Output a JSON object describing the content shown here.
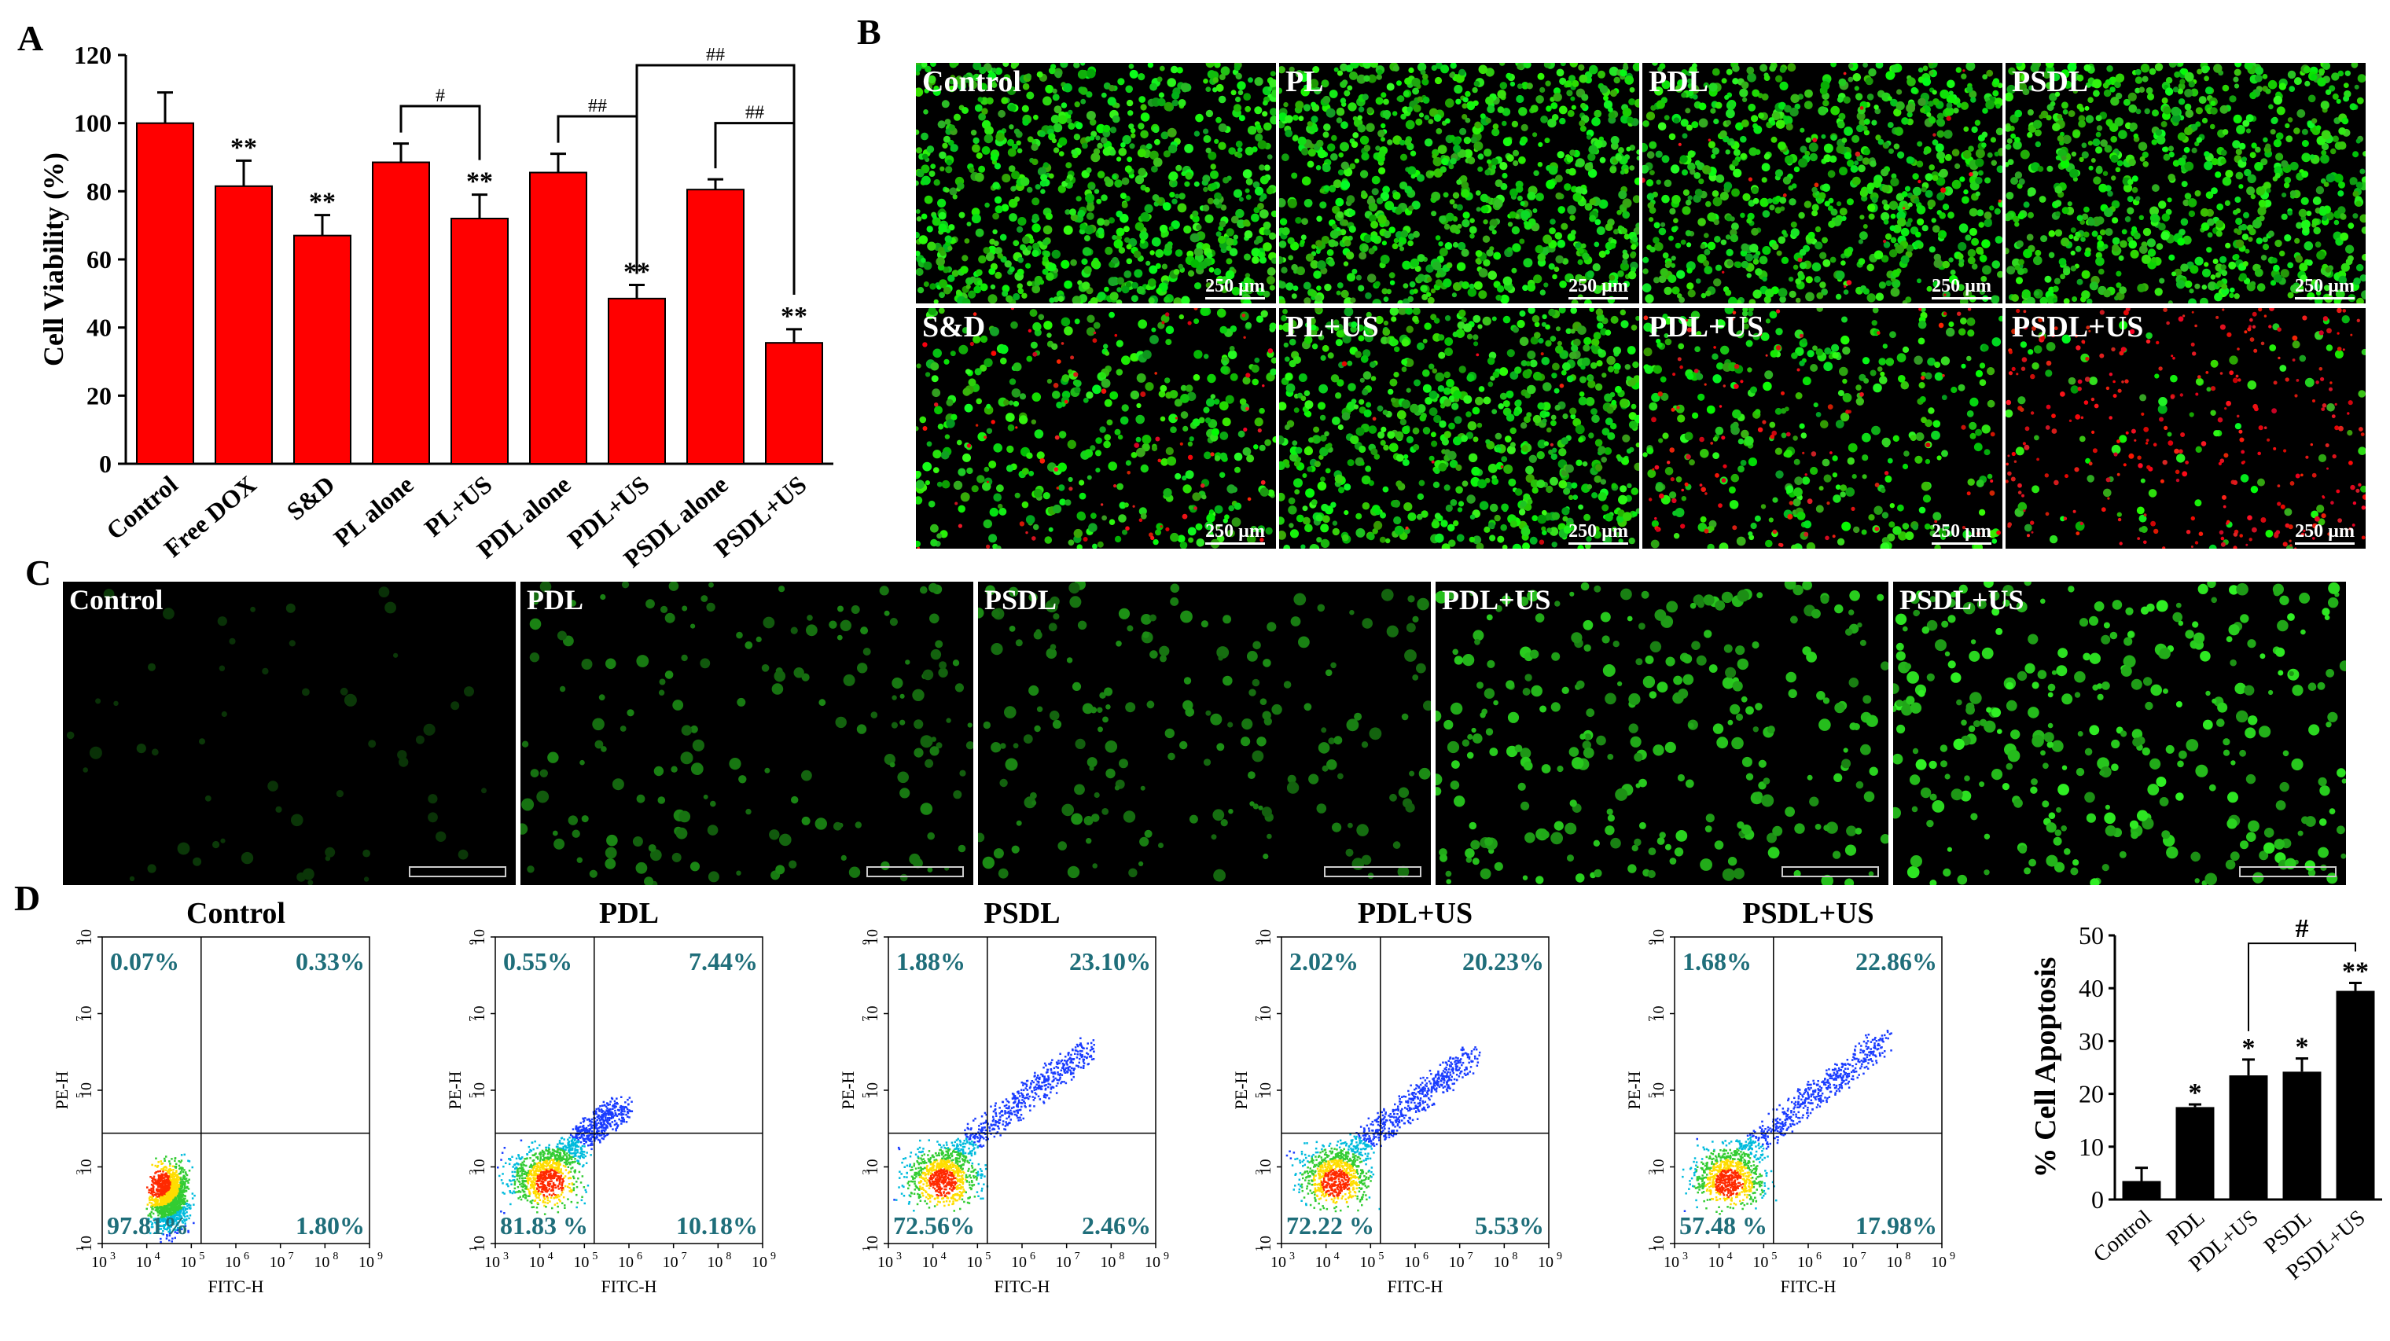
{
  "panels": {
    "A": "A",
    "B": "B",
    "C": "C",
    "D": "D"
  },
  "chart_data": [
    {
      "id": "A",
      "type": "bar",
      "ylabel": "Cell Viability (%)",
      "xlabel": "",
      "ylim": [
        0,
        120
      ],
      "yticks": [
        0,
        20,
        40,
        60,
        80,
        100,
        120
      ],
      "categories": [
        "Control",
        "Free DOX",
        "S&D",
        "PL alone",
        "PL+US",
        "PDL alone",
        "PDL+US",
        "PSDL alone",
        "PSDL+US"
      ],
      "values": [
        100,
        81.5,
        67,
        88.5,
        72,
        85.5,
        48.5,
        80.5,
        35.5
      ],
      "errors": [
        9,
        7.5,
        6,
        5.5,
        7,
        5.5,
        4,
        3,
        4
      ],
      "annotations": [
        "",
        "**",
        "**",
        "",
        "**",
        "",
        "**",
        "",
        "**"
      ],
      "brackets": [
        {
          "from": "PL alone",
          "to": "PL+US",
          "label": "#"
        },
        {
          "from": "PDL alone",
          "to": "PDL+US",
          "label": "##"
        },
        {
          "from": "PSDL alone",
          "to": "PSDL+US",
          "label": "##"
        },
        {
          "from": "PDL+US",
          "to": "PSDL+US",
          "label": "##"
        }
      ],
      "colors": {
        "bar": "#ff0000",
        "edge": "#000000"
      }
    },
    {
      "id": "D-bar",
      "type": "bar",
      "ylabel": "% Cell Apoptosis",
      "xlabel": "",
      "ylim": [
        0,
        50
      ],
      "yticks": [
        0,
        10,
        20,
        30,
        40,
        50
      ],
      "categories": [
        "Control",
        "PDL",
        "PDL+US",
        "PSDL",
        "PSDL+US"
      ],
      "values": [
        3.5,
        17.5,
        23.5,
        24.2,
        39.5
      ],
      "errors": [
        2.5,
        0.5,
        3,
        2.5,
        1.5
      ],
      "annotations": [
        "",
        "*",
        "*",
        "*",
        "**"
      ],
      "brackets": [
        {
          "from": "PDL+US",
          "to": "PSDL+US",
          "label": "#"
        }
      ],
      "colors": {
        "bar": "#000000"
      }
    }
  ],
  "panelB": {
    "scale": "250 µm",
    "images": [
      {
        "label": "Control",
        "green": 1.0,
        "red": 0.0
      },
      {
        "label": "PL",
        "green": 1.0,
        "red": 0.0
      },
      {
        "label": "PDL",
        "green": 0.9,
        "red": 0.05
      },
      {
        "label": "PSDL",
        "green": 0.95,
        "red": 0.0
      },
      {
        "label": "S&D",
        "green": 0.45,
        "red": 0.15
      },
      {
        "label": "PL+US",
        "green": 0.85,
        "red": 0.02
      },
      {
        "label": "PDL+US",
        "green": 0.4,
        "red": 0.2
      },
      {
        "label": "PSDL+US",
        "green": 0.1,
        "red": 0.6
      }
    ]
  },
  "panelC": {
    "images": [
      {
        "label": "Control",
        "intensity": 0.08
      },
      {
        "label": "PDL",
        "intensity": 0.45
      },
      {
        "label": "PSDL",
        "intensity": 0.5
      },
      {
        "label": "PDL+US",
        "intensity": 0.8
      },
      {
        "label": "PSDL+US",
        "intensity": 0.95
      }
    ]
  },
  "flow": {
    "xlabel": "FITC-H",
    "ylabel": "PE-H",
    "xticks": [
      "10",
      "10",
      "10",
      "10",
      "10",
      "10",
      "10"
    ],
    "xexps": [
      "3",
      "4",
      "5",
      "6",
      "7",
      "8",
      "9"
    ],
    "yticks": [
      "10",
      "10",
      "10",
      "10",
      "10"
    ],
    "yexps": [
      "1",
      "3",
      "5",
      "7",
      "9"
    ],
    "plots": [
      {
        "title": "Control",
        "ul": "0.07%",
        "ur": "0.33%",
        "ll": "97.81%",
        "lr": "1.80%",
        "spread": 0.0
      },
      {
        "title": "PDL",
        "ul": "0.55%",
        "ur": "7.44%",
        "ll": "81.83 %",
        "lr": "10.18%",
        "spread": 0.4
      },
      {
        "title": "PSDL",
        "ul": "1.88%",
        "ur": "23.10%",
        "ll": "72.56%",
        "lr": "2.46%",
        "spread": 0.8
      },
      {
        "title": "PDL+US",
        "ul": "2.02%",
        "ur": "20.23%",
        "ll": "72.22 %",
        "lr": "5.53%",
        "spread": 0.75
      },
      {
        "title": "PSDL+US",
        "ul": "1.68%",
        "ur": "22.86%",
        "ll": "57.48 %",
        "lr": "17.98%",
        "spread": 0.85
      }
    ]
  }
}
